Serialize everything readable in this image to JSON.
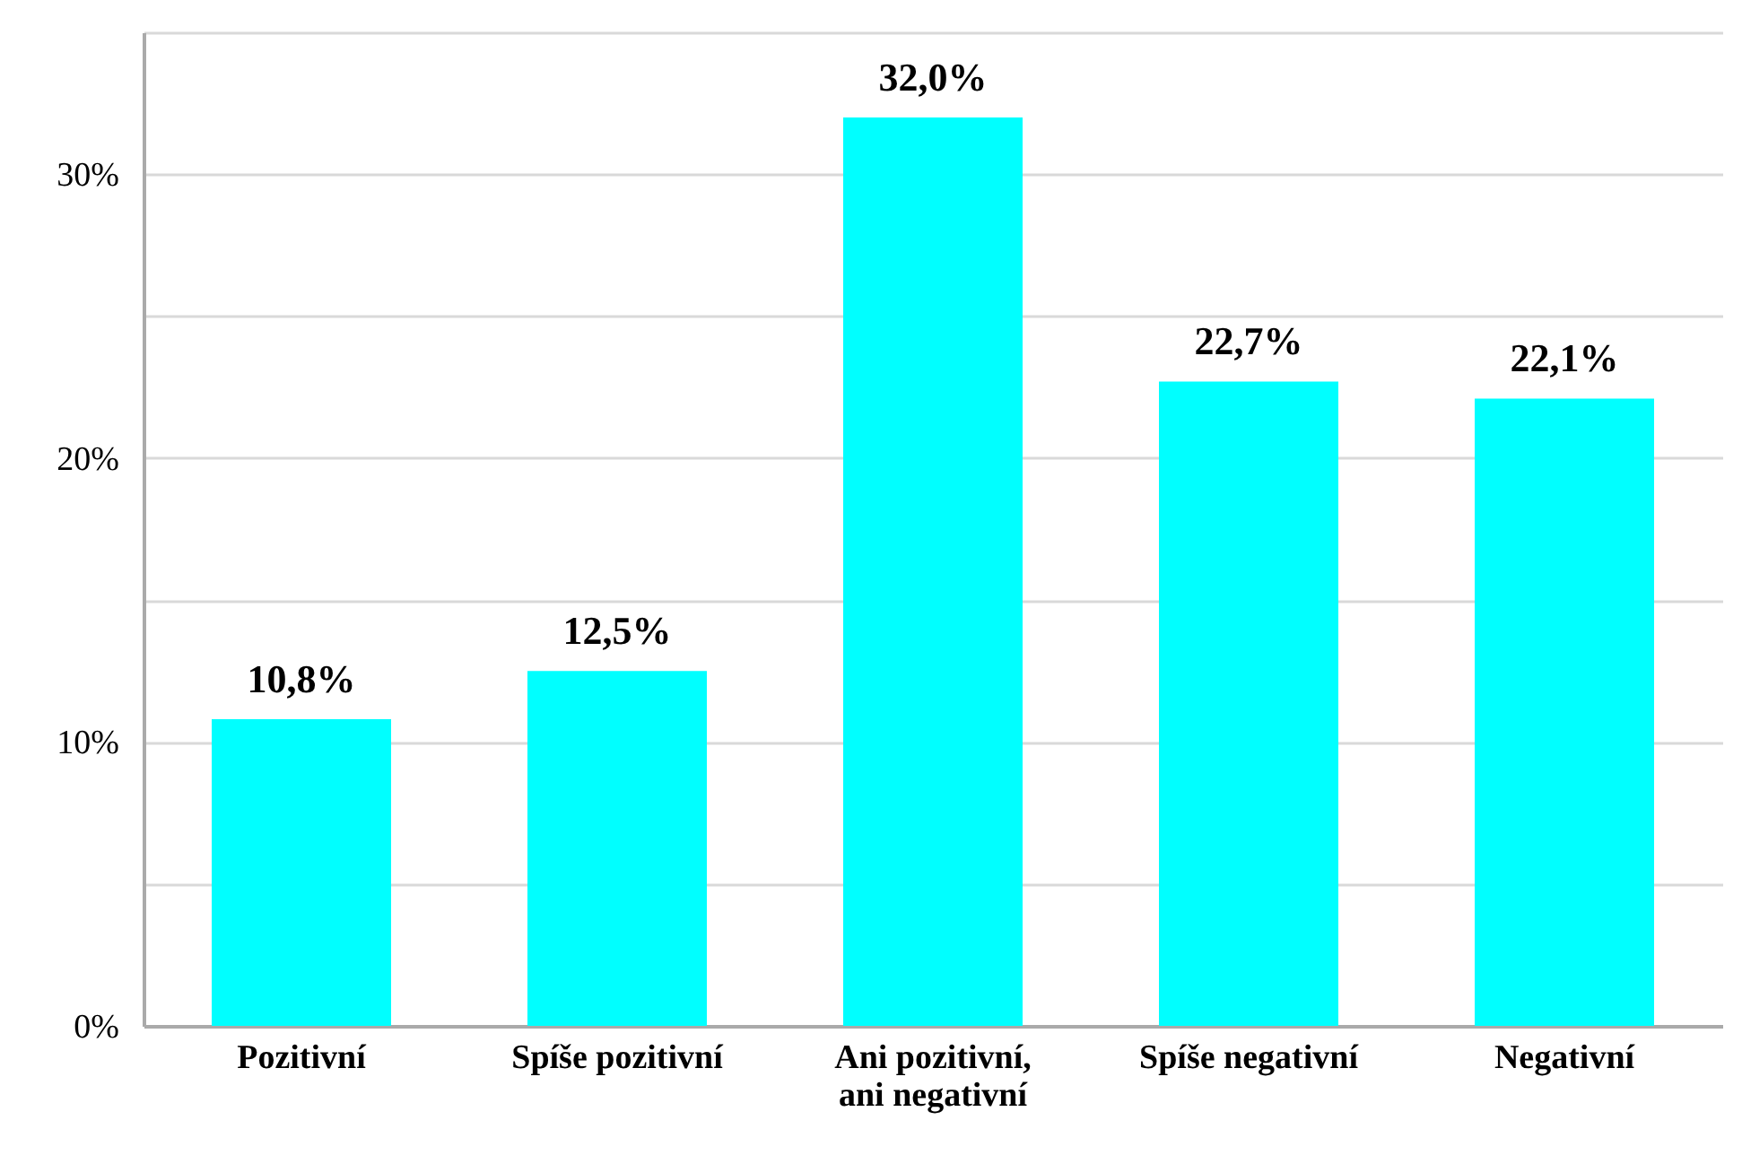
{
  "chart_data": {
    "type": "bar",
    "categories": [
      "Pozitivní",
      "Spíše pozitivní",
      "Ani pozitivní, ani negativní",
      "Spíše negativní",
      "Negativní"
    ],
    "values": [
      10.8,
      12.5,
      32.0,
      22.7,
      22.1
    ],
    "color": "#00ffff",
    "value_labels": [
      "10,8%",
      "12,5%",
      "32,0%",
      "22,7%",
      "22,1%"
    ],
    "ylim": [
      0,
      35
    ],
    "yticks": [
      {
        "value": 0,
        "label": "0%"
      },
      {
        "value": 5,
        "label": null
      },
      {
        "value": 10,
        "label": "10%"
      },
      {
        "value": 15,
        "label": null
      },
      {
        "value": 20,
        "label": "20%"
      },
      {
        "value": 25,
        "label": null
      },
      {
        "value": 30,
        "label": "30%"
      },
      {
        "value": 35,
        "label": null
      }
    ],
    "grid": "y"
  }
}
